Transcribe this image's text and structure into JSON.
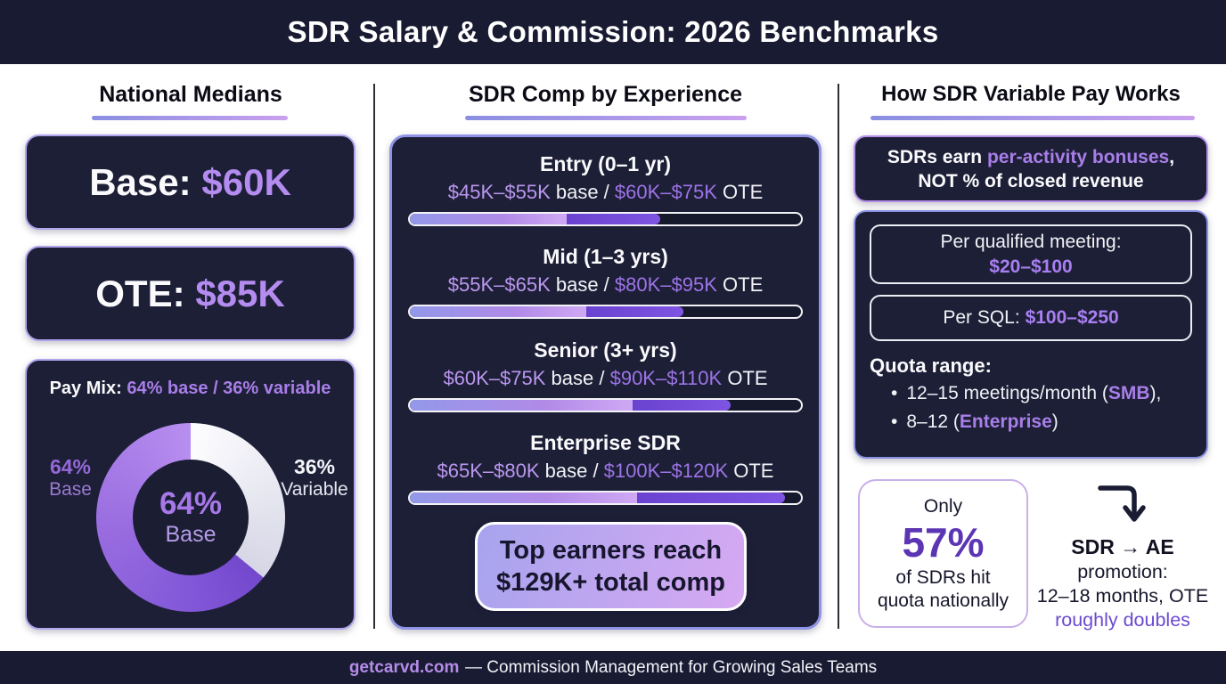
{
  "header": {
    "title": "SDR Salary & Commission: 2026 Benchmarks"
  },
  "footer": {
    "brand": "getcarvd.com",
    "tagline": "— Commission Management for Growing Sales Teams"
  },
  "colors": {
    "navy_bg": "#191b33",
    "card_navy": "#1d1f37",
    "accent_purple": "#a87ee8",
    "light_purple_text": "#b48cf0",
    "deep_purple": "#5c35b5",
    "bar_light": "#b18ae8",
    "bar_dark": "#6f47d6"
  },
  "columns": {
    "left": {
      "heading": "National Medians",
      "base_card": {
        "label": "Base:",
        "value": "$60K"
      },
      "ote_card": {
        "label": "OTE:",
        "value": "$85K"
      },
      "pay_mix": {
        "title_label": "Pay Mix:",
        "title_value": "64% base / 36% variable",
        "center_pct": "64%",
        "center_label": "Base",
        "left_pct": "64%",
        "left_label": "Base",
        "right_pct": "36%",
        "right_label": "Variable"
      }
    },
    "middle": {
      "heading": "SDR Comp by Experience",
      "tiers": [
        {
          "label": "Entry (0–1 yr)",
          "base_range": "$45K–$55K",
          "mid_text": " base / ",
          "ote_range": "$60K–$75K",
          "end_text": " OTE",
          "base_pct": 40,
          "total_pct": 64
        },
        {
          "label": "Mid (1–3 yrs)",
          "base_range": "$55K–$65K",
          "mid_text": " base / ",
          "ote_range": "$80K–$95K",
          "end_text": " OTE",
          "base_pct": 45,
          "total_pct": 70
        },
        {
          "label": "Senior (3+ yrs)",
          "base_range": "$60K–$75K",
          "mid_text": " base / ",
          "ote_range": "$90K–$110K",
          "end_text": " OTE",
          "base_pct": 57,
          "total_pct": 82
        },
        {
          "label": "Enterprise SDR",
          "base_range": "$65K–$80K",
          "mid_text": " base / ",
          "ote_range": "$100K–$120K",
          "end_text": " OTE",
          "base_pct": 58,
          "total_pct": 96
        }
      ],
      "callout": {
        "line1": "Top earners reach",
        "line2": "$129K+ total comp"
      }
    },
    "right": {
      "heading": "How SDR Variable Pay Works",
      "banner": {
        "pre": "SDRs earn",
        "highlight": "per-activity bonuses",
        "comma": ",",
        "line2": "NOT % of closed revenue"
      },
      "rates": [
        {
          "label": "Per qualified meeting:",
          "value": "$20–$100"
        },
        {
          "label": "Per SQL:",
          "value": "$100–$250"
        }
      ],
      "quota": {
        "label": "Quota range:",
        "items": [
          {
            "bullet": "•",
            "pre": "12–15 meetings/month (",
            "hl": "SMB",
            "post": "),"
          },
          {
            "bullet": "•",
            "pre": "8–12 (",
            "hl": "Enterprise",
            "post": ")"
          }
        ]
      },
      "stat": {
        "line1": "Only",
        "value": "57%",
        "line2": "of SDRs hit",
        "line3": "quota nationally"
      },
      "promotion": {
        "line1": "SDR → AE",
        "line2": "promotion:",
        "line3": "12–18 months, OTE",
        "line4": "roughly doubles"
      }
    }
  },
  "chart_data": [
    {
      "type": "pie",
      "title": "Pay Mix: 64% base / 36% variable",
      "labels": [
        "Base",
        "Variable"
      ],
      "values": [
        64,
        36
      ],
      "colors": [
        "#9b6fe0",
        "#f2f2f7"
      ],
      "donut": true,
      "center_label": "64% Base",
      "start": "Variable slice begins at 12 o'clock, clockwise"
    },
    {
      "type": "bar",
      "title": "SDR Comp by Experience",
      "categories": [
        "Entry (0–1 yr)",
        "Mid (1–3 yrs)",
        "Senior (3+ yrs)",
        "Enterprise SDR"
      ],
      "series": [
        {
          "name": "Base salary range ($K)",
          "values": [
            [
              45,
              55
            ],
            [
              55,
              65
            ],
            [
              60,
              75
            ],
            [
              65,
              80
            ]
          ]
        },
        {
          "name": "OTE range ($K)",
          "values": [
            [
              60,
              75
            ],
            [
              80,
              95
            ],
            [
              90,
              110
            ],
            [
              100,
              120
            ]
          ]
        }
      ],
      "bar_fill_percent": {
        "base_segment_end": [
          40,
          45,
          57,
          58
        ],
        "total_fill": [
          64,
          70,
          82,
          96
        ]
      },
      "annotation": "Top earners reach $129K+ total comp",
      "legend_position": "none",
      "grid": false
    }
  ]
}
